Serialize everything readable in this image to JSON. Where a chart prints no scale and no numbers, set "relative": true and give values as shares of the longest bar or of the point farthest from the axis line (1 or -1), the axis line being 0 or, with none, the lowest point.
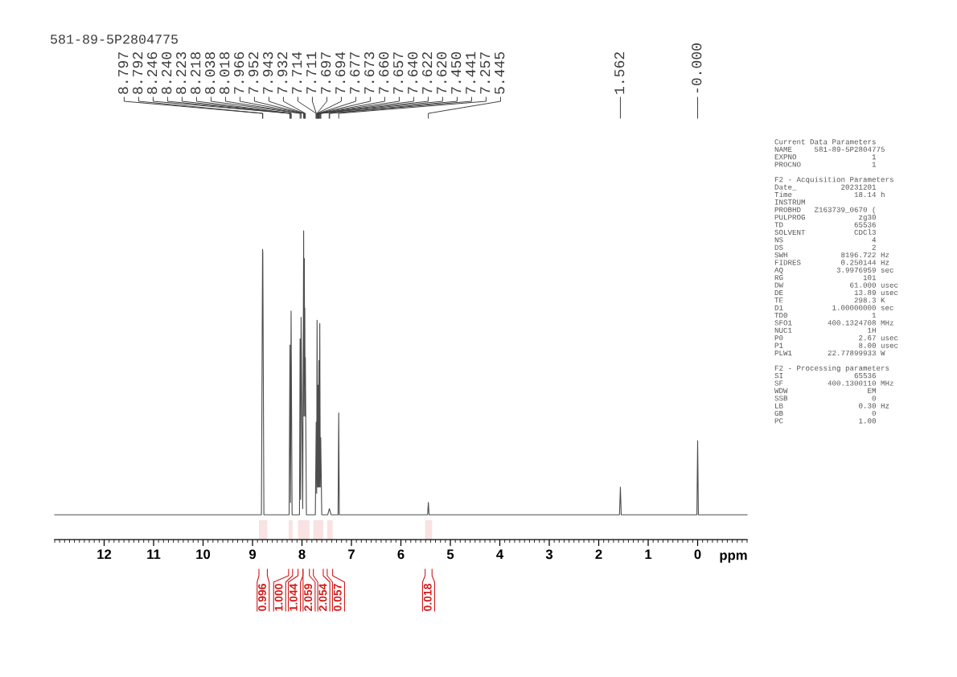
{
  "chart_data": [
    {
      "type": "line",
      "title": "581-89-5P2804775",
      "xlabel": "ppm",
      "relative": true,
      "xlim": [
        13,
        -1
      ],
      "xticks": [
        {
          "value": 13.0,
          "label": null
        },
        {
          "value": 12.9,
          "label": null
        },
        {
          "value": 12.8,
          "label": null
        },
        {
          "value": 12.7,
          "label": null
        },
        {
          "value": 12.6,
          "label": null
        },
        {
          "value": 12.5,
          "label": null
        },
        {
          "value": 12.4,
          "label": null
        },
        {
          "value": 12.3,
          "label": null
        },
        {
          "value": 12.2,
          "label": null
        },
        {
          "value": 12.1,
          "label": null
        },
        12,
        {
          "value": 11.9,
          "label": null
        },
        {
          "value": 11.8,
          "label": null
        },
        {
          "value": 11.7,
          "label": null
        },
        {
          "value": 11.6,
          "label": null
        },
        {
          "value": 11.5,
          "label": null
        },
        {
          "value": 11.4,
          "label": null
        },
        {
          "value": 11.3,
          "label": null
        },
        {
          "value": 11.2,
          "label": null
        },
        {
          "value": 11.1,
          "label": null
        },
        11,
        {
          "value": 10.9,
          "label": null
        },
        {
          "value": 10.8,
          "label": null
        },
        {
          "value": 10.7,
          "label": null
        },
        {
          "value": 10.6,
          "label": null
        },
        {
          "value": 10.5,
          "label": null
        },
        {
          "value": 10.4,
          "label": null
        },
        {
          "value": 10.3,
          "label": null
        },
        {
          "value": 10.2,
          "label": null
        },
        {
          "value": 10.1,
          "label": null
        },
        10,
        {
          "value": 9.9,
          "label": null
        },
        {
          "value": 9.8,
          "label": null
        },
        {
          "value": 9.7,
          "label": null
        },
        {
          "value": 9.6,
          "label": null
        },
        {
          "value": 9.5,
          "label": null
        },
        {
          "value": 9.4,
          "label": null
        },
        {
          "value": 9.3,
          "label": null
        },
        {
          "value": 9.2,
          "label": null
        },
        {
          "value": 9.1,
          "label": null
        },
        9,
        {
          "value": 8.9,
          "label": null
        },
        {
          "value": 8.8,
          "label": null
        },
        {
          "value": 8.7,
          "label": null
        },
        {
          "value": 8.6,
          "label": null
        },
        {
          "value": 8.5,
          "label": null
        },
        {
          "value": 8.4,
          "label": null
        },
        {
          "value": 8.3,
          "label": null
        },
        {
          "value": 8.2,
          "label": null
        },
        {
          "value": 8.1,
          "label": null
        },
        8,
        {
          "value": 7.9,
          "label": null
        },
        {
          "value": 7.8,
          "label": null
        },
        {
          "value": 7.7,
          "label": null
        },
        {
          "value": 7.6,
          "label": null
        },
        {
          "value": 7.5,
          "label": null
        },
        {
          "value": 7.4,
          "label": null
        },
        {
          "value": 7.3,
          "label": null
        },
        {
          "value": 7.2,
          "label": null
        },
        {
          "value": 7.1,
          "label": null
        },
        7,
        {
          "value": 6.9,
          "label": null
        },
        {
          "value": 6.8,
          "label": null
        },
        {
          "value": 6.7,
          "label": null
        },
        {
          "value": 6.6,
          "label": null
        },
        {
          "value": 6.5,
          "label": null
        },
        {
          "value": 6.4,
          "label": null
        },
        {
          "value": 6.3,
          "label": null
        },
        {
          "value": 6.2,
          "label": null
        },
        {
          "value": 6.1,
          "label": null
        },
        6,
        {
          "value": 5.9,
          "label": null
        },
        {
          "value": 5.8,
          "label": null
        },
        {
          "value": 5.7,
          "label": null
        },
        {
          "value": 5.6,
          "label": null
        },
        {
          "value": 5.5,
          "label": null
        },
        {
          "value": 5.4,
          "label": null
        },
        {
          "value": 5.3,
          "label": null
        },
        {
          "value": 5.2,
          "label": null
        },
        {
          "value": 5.1,
          "label": null
        },
        5,
        {
          "value": 4.9,
          "label": null
        },
        {
          "value": 4.8,
          "label": null
        },
        {
          "value": 4.7,
          "label": null
        },
        {
          "value": 4.6,
          "label": null
        },
        {
          "value": 4.5,
          "label": null
        },
        {
          "value": 4.4,
          "label": null
        },
        {
          "value": 4.3,
          "label": null
        },
        {
          "value": 4.2,
          "label": null
        },
        {
          "value": 4.1,
          "label": null
        },
        4,
        {
          "value": 3.9,
          "label": null
        },
        {
          "value": 3.8,
          "label": null
        },
        {
          "value": 3.7,
          "label": null
        },
        {
          "value": 3.6,
          "label": null
        },
        {
          "value": 3.5,
          "label": null
        },
        {
          "value": 3.4,
          "label": null
        },
        {
          "value": 3.3,
          "label": null
        },
        {
          "value": 3.2,
          "label": null
        },
        {
          "value": 3.1,
          "label": null
        },
        3,
        {
          "value": 2.9,
          "label": null
        },
        {
          "value": 2.8,
          "label": null
        },
        {
          "value": 2.7,
          "label": null
        },
        {
          "value": 2.6,
          "label": null
        },
        {
          "value": 2.5,
          "label": null
        },
        {
          "value": 2.4,
          "label": null
        },
        {
          "value": 2.3,
          "label": null
        },
        {
          "value": 2.2,
          "label": null
        },
        {
          "value": 2.1,
          "label": null
        },
        2,
        {
          "value": 1.9,
          "label": null
        },
        {
          "value": 1.8,
          "label": null
        },
        {
          "value": 1.7,
          "label": null
        },
        {
          "value": 1.6,
          "label": null
        },
        {
          "value": 1.5,
          "label": null
        },
        {
          "value": 1.4,
          "label": null
        },
        {
          "value": 1.3,
          "label": null
        },
        {
          "value": 1.2,
          "label": null
        },
        {
          "value": 1.1,
          "label": null
        },
        1,
        {
          "value": 0.9,
          "label": null
        },
        {
          "value": 0.8,
          "label": null
        },
        {
          "value": 0.7,
          "label": null
        },
        {
          "value": 0.6,
          "label": null
        },
        {
          "value": 0.5,
          "label": null
        },
        {
          "value": 0.4,
          "label": null
        },
        {
          "value": 0.3,
          "label": null
        },
        {
          "value": 0.2,
          "label": null
        },
        {
          "value": 0.1,
          "label": null
        },
        0,
        {
          "value": -0.1,
          "label": null
        },
        {
          "value": -0.2,
          "label": null
        },
        {
          "value": -0.3,
          "label": null
        },
        {
          "value": -0.4,
          "label": null
        },
        {
          "value": -0.5,
          "label": null
        },
        {
          "value": -0.6,
          "label": null
        },
        {
          "value": -0.7,
          "label": null
        },
        {
          "value": -0.8,
          "label": null
        },
        {
          "value": -0.9,
          "label": null
        },
        {
          "value": -1.0,
          "label": null
        }
      ],
      "x": [
        13.0,
        8.82,
        8.797,
        8.792,
        8.77,
        8.26,
        8.243,
        8.232,
        8.22,
        8.2,
        8.05,
        8.038,
        8.028,
        8.018,
        7.985,
        7.966,
        7.959,
        7.952,
        7.947,
        7.943,
        7.937,
        7.932,
        7.91,
        7.73,
        7.712,
        7.703,
        7.695,
        7.685,
        7.675,
        7.666,
        7.658,
        7.649,
        7.64,
        7.63,
        7.621,
        7.6,
        7.48,
        7.446,
        7.41,
        7.27,
        7.257,
        7.245,
        5.46,
        5.445,
        5.43,
        1.58,
        1.562,
        1.545,
        0.015,
        0,
        -0.015,
        -1.0
      ],
      "series": [
        {
          "color": "#4d4d4d",
          "values": [
            0.08,
            0.08,
            0.94,
            0.93,
            0.08,
            0.08,
            0.63,
            0.12,
            0.74,
            0.08,
            0.08,
            0.65,
            0.13,
            0.72,
            0.1,
            1.0,
            0.4,
            0.91,
            0.5,
            0.75,
            0.4,
            0.59,
            0.08,
            0.08,
            0.38,
            0.15,
            0.71,
            0.17,
            0.5,
            0.17,
            0.58,
            0.17,
            0.7,
            0.17,
            0.33,
            0.08,
            0.08,
            0.1,
            0.08,
            0.08,
            0.41,
            0.08,
            0.08,
            0.12,
            0.08,
            0.08,
            0.17,
            0.08,
            0.08,
            0.32,
            0.08,
            0.08
          ]
        }
      ],
      "annotations": [
        {
          "text": "8.797",
          "x": 8.797
        },
        {
          "text": "8.792",
          "x": 8.792
        },
        {
          "text": "8.246",
          "x": 8.246
        },
        {
          "text": "8.240",
          "x": 8.24
        },
        {
          "text": "8.223",
          "x": 8.223
        },
        {
          "text": "8.218",
          "x": 8.218
        },
        {
          "text": "8.038",
          "x": 8.038
        },
        {
          "text": "8.018",
          "x": 8.018
        },
        {
          "text": "7.966",
          "x": 7.966
        },
        {
          "text": "7.952",
          "x": 7.952
        },
        {
          "text": "7.943",
          "x": 7.943
        },
        {
          "text": "7.932",
          "x": 7.932
        },
        {
          "text": "7.714",
          "x": 7.714
        },
        {
          "text": "7.711",
          "x": 7.711
        },
        {
          "text": "7.697",
          "x": 7.697
        },
        {
          "text": "7.694",
          "x": 7.694
        },
        {
          "text": "7.677",
          "x": 7.677
        },
        {
          "text": "7.673",
          "x": 7.673
        },
        {
          "text": "7.660",
          "x": 7.66
        },
        {
          "text": "7.657",
          "x": 7.657
        },
        {
          "text": "7.640",
          "x": 7.64
        },
        {
          "text": "7.622",
          "x": 7.622
        },
        {
          "text": "7.620",
          "x": 7.62
        },
        {
          "text": "7.450",
          "x": 7.45
        },
        {
          "text": "7.441",
          "x": 7.441
        },
        {
          "text": "7.257",
          "x": 7.257
        },
        {
          "text": "5.445",
          "x": 5.445
        },
        {
          "text": "1.562",
          "x": 1.562
        },
        {
          "text": "-0.000",
          "x": 0
        }
      ],
      "bands": [
        {
          "axis": "x",
          "from": 8.87,
          "to": 8.7,
          "label": "0.996",
          "color": "#d01c1c"
        },
        {
          "axis": "x",
          "from": 8.27,
          "to": 8.19,
          "label": "1.000",
          "color": "#d01c1c"
        },
        {
          "axis": "x",
          "from": 8.08,
          "to": 7.98,
          "label": "1.044",
          "color": "#d01c1c"
        },
        {
          "axis": "x",
          "from": 7.98,
          "to": 7.85,
          "label": "2.059",
          "color": "#d01c1c"
        },
        {
          "axis": "x",
          "from": 7.77,
          "to": 7.57,
          "label": "2.054",
          "color": "#d01c1c"
        },
        {
          "axis": "x",
          "from": 7.49,
          "to": 7.38,
          "label": "0.057",
          "color": "#d01c1c"
        },
        {
          "axis": "x",
          "from": 5.51,
          "to": 5.37,
          "label": "0.018",
          "color": "#d01c1c"
        }
      ]
    },
    {
      "type": "other",
      "annotations": [
        "Current Data Parameters\nNAME     581-89-5P2804775\nEXPNO                 1\nPROCNO                1",
        "F2 - Acquisition Parameters\nDate_          20231201\nTime              18.14 h\nINSTRUM\nPROBHD   Z163739_0670 (\nPULPROG            zg30\nTD                65536\nSOLVENT           CDCl3\nNS                    4\nDS                    2\nSWH            8196.722 Hz\nFIDRES         0.250144 Hz\nAQ            3.9976959 sec\nRG                  101\nDW               61.000 usec\nDE                13.89 usec\nTE                298.3 K\nD1           1.00000000 sec\nTD0                   1\nSFO1        400.1324708 MHz\nNUC1                 1H\nP0                 2.67 usec\nP1                 8.00 usec\nPLW1        22.77899933 W",
        "F2 - Processing parameters\nSI                65536\nSF          400.1300110 MHz\nWDW                  EM\nSSB                   0\nLB                 0.30 Hz\nGB                    0\nPC                 1.00"
      ]
    }
  ]
}
